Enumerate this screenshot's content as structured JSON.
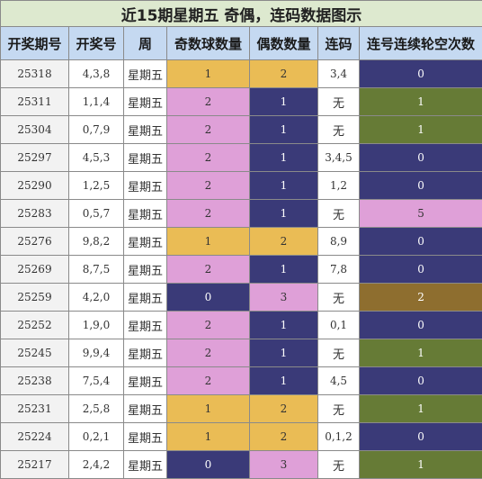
{
  "title": "近15期星期五 奇偶，连码数据图示",
  "headers": [
    "开奖期号",
    "开奖号",
    "周",
    "奇数球数量",
    "偶数数量",
    "连码",
    "连号连续轮空次数"
  ],
  "rows": [
    {
      "issue": "25318",
      "numbers": "4,3,8",
      "week": "星期五",
      "odd": "1",
      "odd_color": "yellow",
      "even": "2",
      "even_color": "yellow",
      "consec": "3,4",
      "miss": "0",
      "miss_color": "navy"
    },
    {
      "issue": "25311",
      "numbers": "1,1,4",
      "week": "星期五",
      "odd": "2",
      "odd_color": "pink",
      "even": "1",
      "even_color": "navy",
      "consec": "无",
      "miss": "1",
      "miss_color": "green"
    },
    {
      "issue": "25304",
      "numbers": "0,7,9",
      "week": "星期五",
      "odd": "2",
      "odd_color": "pink",
      "even": "1",
      "even_color": "navy",
      "consec": "无",
      "miss": "1",
      "miss_color": "green"
    },
    {
      "issue": "25297",
      "numbers": "4,5,3",
      "week": "星期五",
      "odd": "2",
      "odd_color": "pink",
      "even": "1",
      "even_color": "navy",
      "consec": "3,4,5",
      "miss": "0",
      "miss_color": "navy"
    },
    {
      "issue": "25290",
      "numbers": "1,2,5",
      "week": "星期五",
      "odd": "2",
      "odd_color": "pink",
      "even": "1",
      "even_color": "navy",
      "consec": "1,2",
      "miss": "0",
      "miss_color": "navy"
    },
    {
      "issue": "25283",
      "numbers": "0,5,7",
      "week": "星期五",
      "odd": "2",
      "odd_color": "pink",
      "even": "1",
      "even_color": "navy",
      "consec": "无",
      "miss": "5",
      "miss_color": "pink"
    },
    {
      "issue": "25276",
      "numbers": "9,8,2",
      "week": "星期五",
      "odd": "1",
      "odd_color": "yellow",
      "even": "2",
      "even_color": "yellow",
      "consec": "8,9",
      "miss": "0",
      "miss_color": "navy"
    },
    {
      "issue": "25269",
      "numbers": "8,7,5",
      "week": "星期五",
      "odd": "2",
      "odd_color": "pink",
      "even": "1",
      "even_color": "navy",
      "consec": "7,8",
      "miss": "0",
      "miss_color": "navy"
    },
    {
      "issue": "25259",
      "numbers": "4,2,0",
      "week": "星期五",
      "odd": "0",
      "odd_color": "navy",
      "even": "3",
      "even_color": "pink",
      "consec": "无",
      "miss": "2",
      "miss_color": "brown"
    },
    {
      "issue": "25252",
      "numbers": "1,9,0",
      "week": "星期五",
      "odd": "2",
      "odd_color": "pink",
      "even": "1",
      "even_color": "navy",
      "consec": "0,1",
      "miss": "0",
      "miss_color": "navy"
    },
    {
      "issue": "25245",
      "numbers": "9,9,4",
      "week": "星期五",
      "odd": "2",
      "odd_color": "pink",
      "even": "1",
      "even_color": "navy",
      "consec": "无",
      "miss": "1",
      "miss_color": "green"
    },
    {
      "issue": "25238",
      "numbers": "7,5,4",
      "week": "星期五",
      "odd": "2",
      "odd_color": "pink",
      "even": "1",
      "even_color": "navy",
      "consec": "4,5",
      "miss": "0",
      "miss_color": "navy"
    },
    {
      "issue": "25231",
      "numbers": "2,5,8",
      "week": "星期五",
      "odd": "1",
      "odd_color": "yellow",
      "even": "2",
      "even_color": "yellow",
      "consec": "无",
      "miss": "1",
      "miss_color": "green"
    },
    {
      "issue": "25224",
      "numbers": "0,2,1",
      "week": "星期五",
      "odd": "1",
      "odd_color": "yellow",
      "even": "2",
      "even_color": "yellow",
      "consec": "0,1,2",
      "miss": "0",
      "miss_color": "navy"
    },
    {
      "issue": "25217",
      "numbers": "2,4,2",
      "week": "星期五",
      "odd": "0",
      "odd_color": "navy",
      "even": "3",
      "even_color": "pink",
      "consec": "无",
      "miss": "1",
      "miss_color": "green"
    }
  ]
}
